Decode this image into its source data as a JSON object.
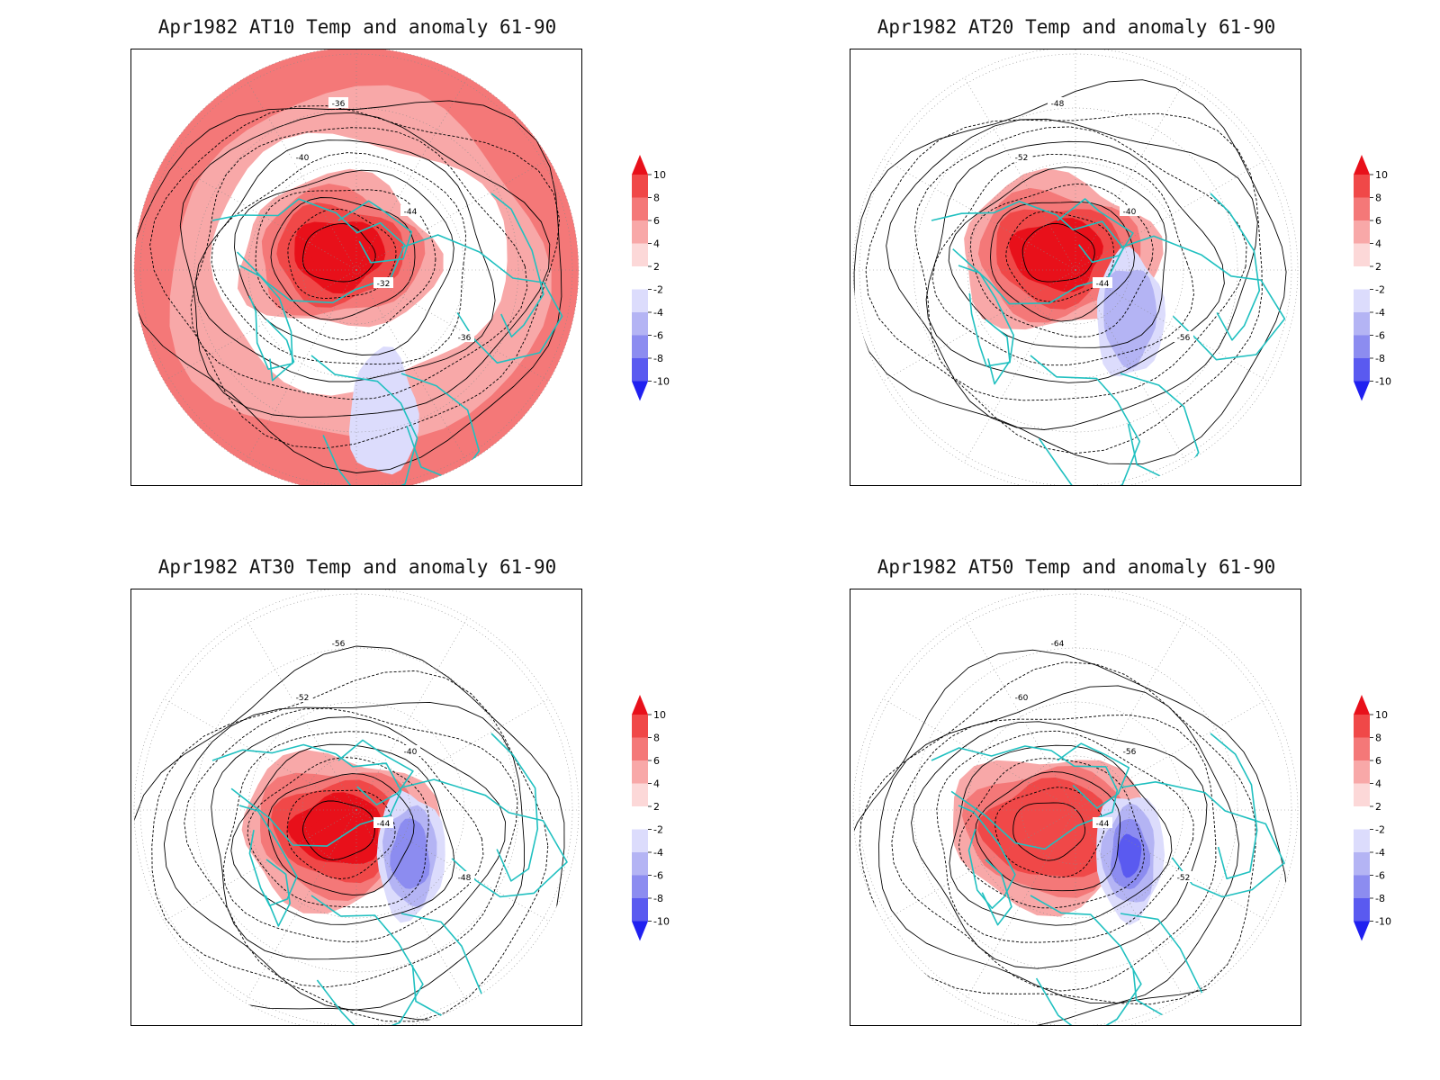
{
  "panels": [
    {
      "id": "at10",
      "title": "Apr1982 AT10 Temp and anomaly 61-90",
      "contour_labels": [
        "-36",
        "-40",
        "-44",
        "-32",
        "-36"
      ],
      "anomaly": {
        "warm_core": 10,
        "cold_core": -2,
        "outer_ring": 4
      }
    },
    {
      "id": "at20",
      "title": "Apr1982 AT20 Temp and anomaly 61-90",
      "contour_labels": [
        "-48",
        "-52",
        "-40",
        "-44",
        "-56"
      ],
      "anomaly": {
        "warm_core": 8,
        "cold_core": -4,
        "outer_ring": 0
      }
    },
    {
      "id": "at30",
      "title": "Apr1982 AT30 Temp and anomaly 61-90",
      "contour_labels": [
        "-56",
        "-52",
        "-40",
        "-44",
        "-48"
      ],
      "anomaly": {
        "warm_core": 10,
        "cold_core": -6,
        "outer_ring": 0
      }
    },
    {
      "id": "at50",
      "title": "Apr1982 AT50 Temp and anomaly 61-90",
      "contour_labels": [
        "-64",
        "-60",
        "-56",
        "-44",
        "-52"
      ],
      "anomaly": {
        "warm_core": 6,
        "cold_core": -8,
        "outer_ring": 0
      }
    }
  ],
  "colorbar": {
    "labels": [
      "10",
      "8",
      "6",
      "4",
      "2",
      "-2",
      "-4",
      "-6",
      "-8",
      "-10"
    ],
    "colors": [
      "#e8101a",
      "#f04848",
      "#f47878",
      "#f8a8a8",
      "#fcd8d8",
      "#ffffff",
      "#dcdcfc",
      "#b4b4f4",
      "#8c8cf0",
      "#5a5af0",
      "#2020f0"
    ]
  },
  "colors": {
    "coastline": "#20c0c0",
    "contour": "#000000",
    "grid": "#888888"
  }
}
